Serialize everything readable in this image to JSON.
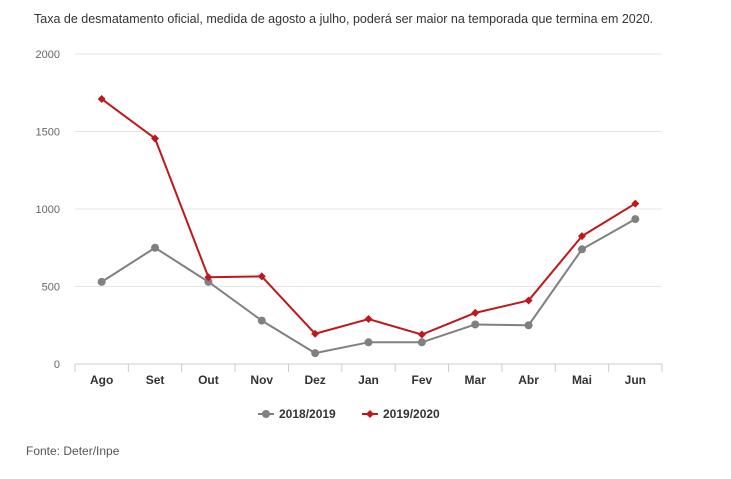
{
  "subtitle": "Taxa de desmatamento oficial, medida de agosto a julho, poderá ser maior na temporada que termina em 2020.",
  "source": "Fonte: Deter/Inpe",
  "colors": {
    "series_2018": "#808080",
    "series_2019": "#c0171b",
    "grid": "#e6e6e6",
    "axis": "#cccccc"
  },
  "chart_data": {
    "type": "line",
    "title": "",
    "xlabel": "",
    "ylabel": "",
    "categories": [
      "Ago",
      "Set",
      "Out",
      "Nov",
      "Dez",
      "Jan",
      "Fev",
      "Mar",
      "Abr",
      "Mai",
      "Jun"
    ],
    "ylim": [
      0,
      2000
    ],
    "yticks": [
      0,
      500,
      1000,
      1500,
      2000
    ],
    "grid": true,
    "legend_position": "bottom-center",
    "series": [
      {
        "name": "2018/2019",
        "marker": "circle",
        "values": [
          530,
          750,
          530,
          280,
          70,
          140,
          140,
          255,
          250,
          740,
          935
        ]
      },
      {
        "name": "2019/2020",
        "marker": "diamond",
        "values": [
          1710,
          1455,
          560,
          565,
          195,
          290,
          190,
          330,
          410,
          825,
          1035
        ]
      }
    ]
  }
}
